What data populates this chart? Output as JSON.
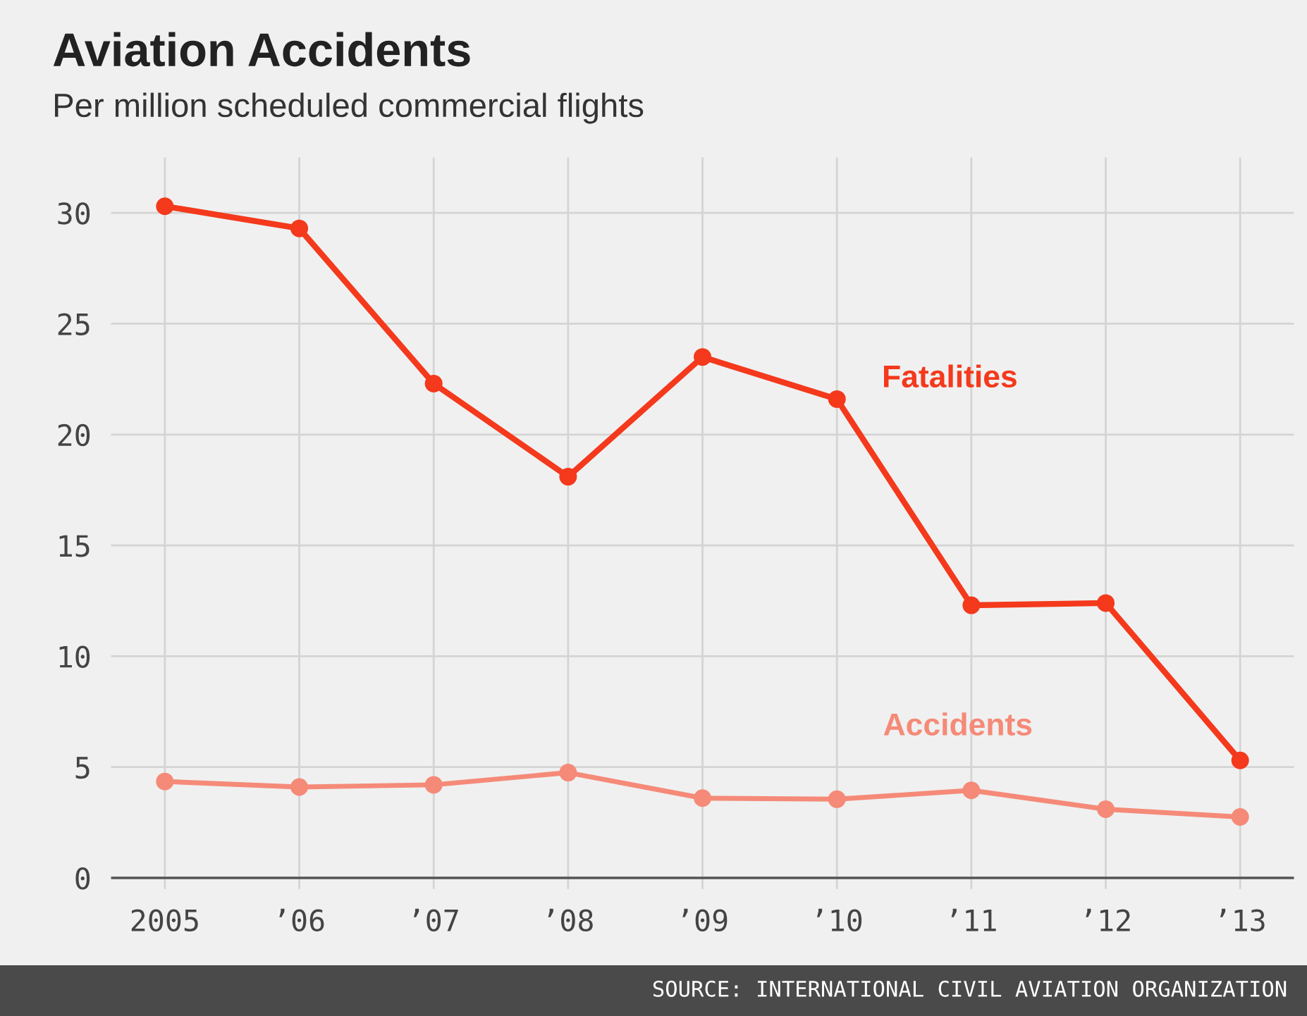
{
  "chart_data": {
    "type": "line",
    "title": "Aviation Accidents",
    "subtitle": "Per million scheduled commercial flights",
    "categories": [
      "2005",
      "’06",
      "’07",
      "’08",
      "’09",
      "’10",
      "’11",
      "’12",
      "’13"
    ],
    "series": [
      {
        "name": "Fatalities",
        "color": "#f4391c",
        "values": [
          30.3,
          29.3,
          22.3,
          18.1,
          23.5,
          21.6,
          12.3,
          12.4,
          5.3
        ]
      },
      {
        "name": "Accidents",
        "color": "#f58a78",
        "values": [
          4.35,
          4.1,
          4.2,
          4.75,
          3.6,
          3.55,
          3.95,
          3.1,
          2.75
        ]
      }
    ],
    "ylim": [
      -0.5,
      32.5
    ],
    "yticks": [
      0,
      5,
      10,
      15,
      20,
      25,
      30
    ],
    "grid": true,
    "marker": "circle",
    "line_style": "solid",
    "legend": false,
    "annotations": [
      "SOURCE: INTERNATIONAL CIVIL AVIATION ORGANIZATION"
    ]
  }
}
